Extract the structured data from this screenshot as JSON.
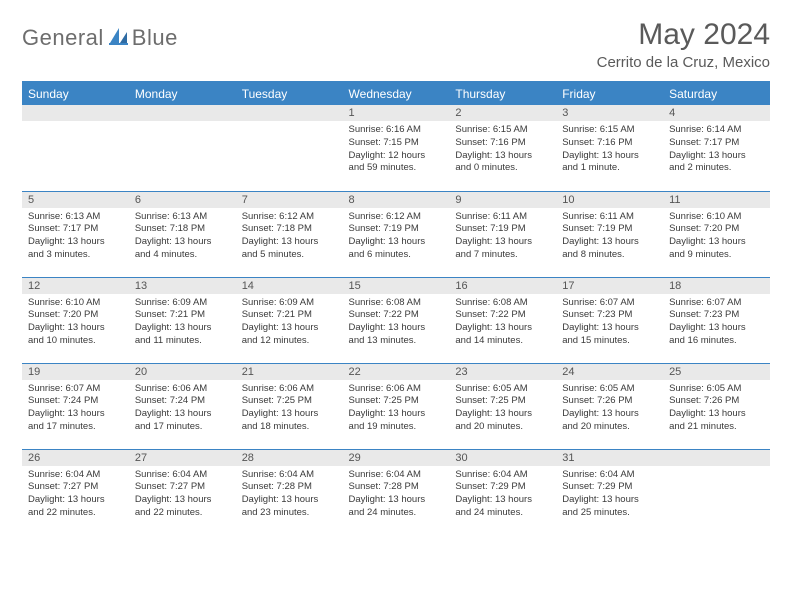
{
  "brand": {
    "part1": "General",
    "part2": "Blue"
  },
  "title": "May 2024",
  "location": "Cerrito de la Cruz, Mexico",
  "colors": {
    "accent": "#3b84c4",
    "header_bg": "#3b84c4",
    "daynum_bg": "#e9e9e9",
    "text": "#3a3a3a",
    "title": "#5a5a5a"
  },
  "day_headers": [
    "Sunday",
    "Monday",
    "Tuesday",
    "Wednesday",
    "Thursday",
    "Friday",
    "Saturday"
  ],
  "weeks": [
    [
      {
        "n": "",
        "empty": true
      },
      {
        "n": "",
        "empty": true
      },
      {
        "n": "",
        "empty": true
      },
      {
        "n": "1",
        "sr": "Sunrise: 6:16 AM",
        "ss": "Sunset: 7:15 PM",
        "d1": "Daylight: 12 hours",
        "d2": "and 59 minutes."
      },
      {
        "n": "2",
        "sr": "Sunrise: 6:15 AM",
        "ss": "Sunset: 7:16 PM",
        "d1": "Daylight: 13 hours",
        "d2": "and 0 minutes."
      },
      {
        "n": "3",
        "sr": "Sunrise: 6:15 AM",
        "ss": "Sunset: 7:16 PM",
        "d1": "Daylight: 13 hours",
        "d2": "and 1 minute."
      },
      {
        "n": "4",
        "sr": "Sunrise: 6:14 AM",
        "ss": "Sunset: 7:17 PM",
        "d1": "Daylight: 13 hours",
        "d2": "and 2 minutes."
      }
    ],
    [
      {
        "n": "5",
        "sr": "Sunrise: 6:13 AM",
        "ss": "Sunset: 7:17 PM",
        "d1": "Daylight: 13 hours",
        "d2": "and 3 minutes."
      },
      {
        "n": "6",
        "sr": "Sunrise: 6:13 AM",
        "ss": "Sunset: 7:18 PM",
        "d1": "Daylight: 13 hours",
        "d2": "and 4 minutes."
      },
      {
        "n": "7",
        "sr": "Sunrise: 6:12 AM",
        "ss": "Sunset: 7:18 PM",
        "d1": "Daylight: 13 hours",
        "d2": "and 5 minutes."
      },
      {
        "n": "8",
        "sr": "Sunrise: 6:12 AM",
        "ss": "Sunset: 7:19 PM",
        "d1": "Daylight: 13 hours",
        "d2": "and 6 minutes."
      },
      {
        "n": "9",
        "sr": "Sunrise: 6:11 AM",
        "ss": "Sunset: 7:19 PM",
        "d1": "Daylight: 13 hours",
        "d2": "and 7 minutes."
      },
      {
        "n": "10",
        "sr": "Sunrise: 6:11 AM",
        "ss": "Sunset: 7:19 PM",
        "d1": "Daylight: 13 hours",
        "d2": "and 8 minutes."
      },
      {
        "n": "11",
        "sr": "Sunrise: 6:10 AM",
        "ss": "Sunset: 7:20 PM",
        "d1": "Daylight: 13 hours",
        "d2": "and 9 minutes."
      }
    ],
    [
      {
        "n": "12",
        "sr": "Sunrise: 6:10 AM",
        "ss": "Sunset: 7:20 PM",
        "d1": "Daylight: 13 hours",
        "d2": "and 10 minutes."
      },
      {
        "n": "13",
        "sr": "Sunrise: 6:09 AM",
        "ss": "Sunset: 7:21 PM",
        "d1": "Daylight: 13 hours",
        "d2": "and 11 minutes."
      },
      {
        "n": "14",
        "sr": "Sunrise: 6:09 AM",
        "ss": "Sunset: 7:21 PM",
        "d1": "Daylight: 13 hours",
        "d2": "and 12 minutes."
      },
      {
        "n": "15",
        "sr": "Sunrise: 6:08 AM",
        "ss": "Sunset: 7:22 PM",
        "d1": "Daylight: 13 hours",
        "d2": "and 13 minutes."
      },
      {
        "n": "16",
        "sr": "Sunrise: 6:08 AM",
        "ss": "Sunset: 7:22 PM",
        "d1": "Daylight: 13 hours",
        "d2": "and 14 minutes."
      },
      {
        "n": "17",
        "sr": "Sunrise: 6:07 AM",
        "ss": "Sunset: 7:23 PM",
        "d1": "Daylight: 13 hours",
        "d2": "and 15 minutes."
      },
      {
        "n": "18",
        "sr": "Sunrise: 6:07 AM",
        "ss": "Sunset: 7:23 PM",
        "d1": "Daylight: 13 hours",
        "d2": "and 16 minutes."
      }
    ],
    [
      {
        "n": "19",
        "sr": "Sunrise: 6:07 AM",
        "ss": "Sunset: 7:24 PM",
        "d1": "Daylight: 13 hours",
        "d2": "and 17 minutes."
      },
      {
        "n": "20",
        "sr": "Sunrise: 6:06 AM",
        "ss": "Sunset: 7:24 PM",
        "d1": "Daylight: 13 hours",
        "d2": "and 17 minutes."
      },
      {
        "n": "21",
        "sr": "Sunrise: 6:06 AM",
        "ss": "Sunset: 7:25 PM",
        "d1": "Daylight: 13 hours",
        "d2": "and 18 minutes."
      },
      {
        "n": "22",
        "sr": "Sunrise: 6:06 AM",
        "ss": "Sunset: 7:25 PM",
        "d1": "Daylight: 13 hours",
        "d2": "and 19 minutes."
      },
      {
        "n": "23",
        "sr": "Sunrise: 6:05 AM",
        "ss": "Sunset: 7:25 PM",
        "d1": "Daylight: 13 hours",
        "d2": "and 20 minutes."
      },
      {
        "n": "24",
        "sr": "Sunrise: 6:05 AM",
        "ss": "Sunset: 7:26 PM",
        "d1": "Daylight: 13 hours",
        "d2": "and 20 minutes."
      },
      {
        "n": "25",
        "sr": "Sunrise: 6:05 AM",
        "ss": "Sunset: 7:26 PM",
        "d1": "Daylight: 13 hours",
        "d2": "and 21 minutes."
      }
    ],
    [
      {
        "n": "26",
        "sr": "Sunrise: 6:04 AM",
        "ss": "Sunset: 7:27 PM",
        "d1": "Daylight: 13 hours",
        "d2": "and 22 minutes."
      },
      {
        "n": "27",
        "sr": "Sunrise: 6:04 AM",
        "ss": "Sunset: 7:27 PM",
        "d1": "Daylight: 13 hours",
        "d2": "and 22 minutes."
      },
      {
        "n": "28",
        "sr": "Sunrise: 6:04 AM",
        "ss": "Sunset: 7:28 PM",
        "d1": "Daylight: 13 hours",
        "d2": "and 23 minutes."
      },
      {
        "n": "29",
        "sr": "Sunrise: 6:04 AM",
        "ss": "Sunset: 7:28 PM",
        "d1": "Daylight: 13 hours",
        "d2": "and 24 minutes."
      },
      {
        "n": "30",
        "sr": "Sunrise: 6:04 AM",
        "ss": "Sunset: 7:29 PM",
        "d1": "Daylight: 13 hours",
        "d2": "and 24 minutes."
      },
      {
        "n": "31",
        "sr": "Sunrise: 6:04 AM",
        "ss": "Sunset: 7:29 PM",
        "d1": "Daylight: 13 hours",
        "d2": "and 25 minutes."
      },
      {
        "n": "",
        "empty": true
      }
    ]
  ]
}
